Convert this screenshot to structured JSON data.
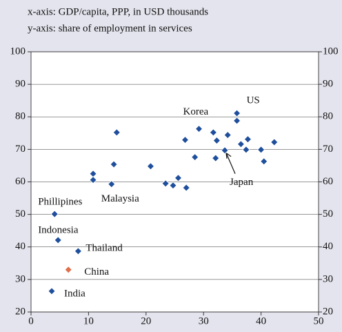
{
  "chart_data": {
    "type": "scatter",
    "subtitle_x": "x-axis: GDP/capita, PPP, in USD thousands",
    "subtitle_y": "y-axis: share of employment in services",
    "xlim": [
      0,
      50
    ],
    "xticks": [
      0,
      10,
      20,
      30,
      40,
      50
    ],
    "ylim": [
      20,
      100
    ],
    "yticks": [
      20,
      30,
      40,
      50,
      60,
      70,
      80,
      90,
      100
    ],
    "grid": true,
    "series": [
      {
        "color": "#1f4f9c",
        "x": [
          3.6,
          8.2,
          4.7,
          4.1,
          10.8,
          10.8,
          14.0,
          14.4,
          14.9,
          20.8,
          23.4,
          24.7,
          25.6,
          27.0,
          26.8,
          28.5,
          29.2,
          31.7,
          32.1,
          32.3,
          33.7,
          34.2,
          35.8,
          35.8,
          36.5,
          37.4,
          37.7,
          40.0,
          40.5,
          42.3
        ],
        "values": [
          26.4,
          38.7,
          42.1,
          50.1,
          62.5,
          60.6,
          59.3,
          65.4,
          75.2,
          64.8,
          59.5,
          58.9,
          61.2,
          58.2,
          72.9,
          67.6,
          76.3,
          75.2,
          67.3,
          72.7,
          69.7,
          74.4,
          81.1,
          78.8,
          71.6,
          69.9,
          73.1,
          69.9,
          66.3,
          72.2
        ],
        "labels": [
          "India",
          "Thailand",
          "Indonesia",
          "Phillipines",
          null,
          null,
          "Malaysia",
          null,
          null,
          null,
          null,
          null,
          null,
          null,
          null,
          null,
          "Korea",
          null,
          null,
          null,
          "Japan",
          null,
          "US",
          null,
          null,
          null,
          null,
          null,
          null,
          null
        ]
      },
      {
        "color": "#e0704a",
        "x": [
          6.5
        ],
        "values": [
          33.0
        ],
        "labels": [
          "China"
        ]
      }
    ]
  }
}
